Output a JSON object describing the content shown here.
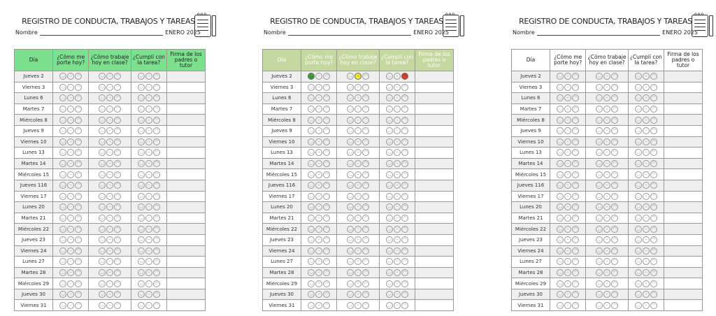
{
  "title": "REGISTRO DE CONDUCTA, TRABAJOS Y TAREAS",
  "name_label": "Nombre",
  "month": "ENERO 2025",
  "headers": [
    "Día",
    "¿Cómo me porte hoy?",
    "¿Cómo trabaje hoy en clase?",
    "¿Cumplí con la tarea?",
    "Firma de los padres o tutor"
  ],
  "days": [
    "Jueves 2",
    "Viernes 3",
    "Lunes 6",
    "Martes 7",
    "Miércoles 8",
    "Jueves 9",
    "Viernes 10",
    "Lunes 13",
    "Martes 14",
    "Miércoles 15",
    "Jueves 116",
    "Viernes 17",
    "Lunes 20",
    "Martes 21",
    "Miércoles 22",
    "Jueves 23",
    "Viernes 24",
    "Lunes 27",
    "Martes 28",
    "Miércoles 29",
    "Jueves 30",
    "Viernes 31"
  ],
  "face_icons": [
    "happy-face-icon",
    "neutral-face-icon",
    "sad-face-icon"
  ],
  "sheets": [
    {
      "header_bg": "#7de08f",
      "header_text": "#222222"
    },
    {
      "header_bg": "#c4d89f",
      "header_text": "#ffffff",
      "filled_row": "Jueves 2",
      "filled": {
        "conducta": {
          "face": "happy-face-icon",
          "color": "#3aa63a"
        },
        "trabajo": {
          "face": "neutral-face-icon",
          "color": "#f5e92a"
        },
        "tarea": {
          "face": "sad-face-icon",
          "color": "#e23b2a"
        }
      }
    },
    {
      "header_bg": "#ffffff",
      "header_text": "#222222"
    }
  ]
}
